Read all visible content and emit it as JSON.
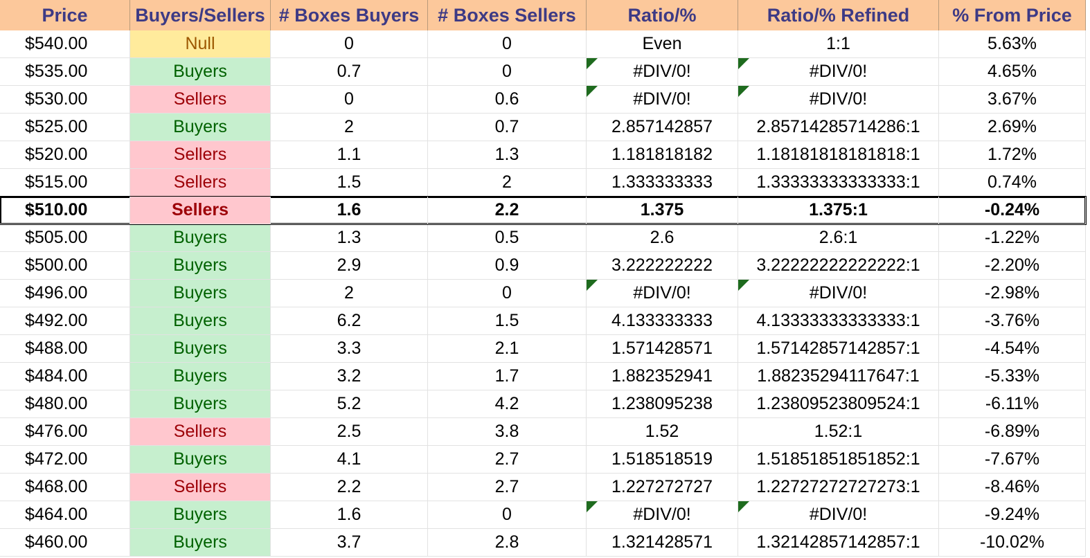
{
  "headers": [
    "Price",
    "Buyers/Sellers",
    "# Boxes Buyers",
    "# Boxes Sellers",
    "Ratio/%",
    "Ratio/% Refined",
    "% From Price"
  ],
  "current_price_row_index": 6,
  "colors": {
    "header_bg": "#fcc89b",
    "header_text": "#3d3a85",
    "buyers_bg": "#c6efce",
    "buyers_text": "#006100",
    "sellers_bg": "#ffc7ce",
    "sellers_text": "#9c0006",
    "null_bg": "#ffeb9c",
    "null_text": "#9c5700",
    "error_indicator": "#1e6b1e"
  },
  "rows": [
    {
      "price": "$540.00",
      "side": "Null",
      "buyers": "0",
      "sellers": "0",
      "ratio": "Even",
      "refined": "1:1",
      "pct": "5.63%",
      "error": false
    },
    {
      "price": "$535.00",
      "side": "Buyers",
      "buyers": "0.7",
      "sellers": "0",
      "ratio": "#DIV/0!",
      "refined": "#DIV/0!",
      "pct": "4.65%",
      "error": true
    },
    {
      "price": "$530.00",
      "side": "Sellers",
      "buyers": "0",
      "sellers": "0.6",
      "ratio": "#DIV/0!",
      "refined": "#DIV/0!",
      "pct": "3.67%",
      "error": true
    },
    {
      "price": "$525.00",
      "side": "Buyers",
      "buyers": "2",
      "sellers": "0.7",
      "ratio": "2.857142857",
      "refined": "2.85714285714286:1",
      "pct": "2.69%",
      "error": false
    },
    {
      "price": "$520.00",
      "side": "Sellers",
      "buyers": "1.1",
      "sellers": "1.3",
      "ratio": "1.181818182",
      "refined": "1.18181818181818:1",
      "pct": "1.72%",
      "error": false
    },
    {
      "price": "$515.00",
      "side": "Sellers",
      "buyers": "1.5",
      "sellers": "2",
      "ratio": "1.333333333",
      "refined": "1.33333333333333:1",
      "pct": "0.74%",
      "error": false
    },
    {
      "price": "$510.00",
      "side": "Sellers",
      "buyers": "1.6",
      "sellers": "2.2",
      "ratio": "1.375",
      "refined": "1.375:1",
      "pct": "-0.24%",
      "error": false
    },
    {
      "price": "$505.00",
      "side": "Buyers",
      "buyers": "1.3",
      "sellers": "0.5",
      "ratio": "2.6",
      "refined": "2.6:1",
      "pct": "-1.22%",
      "error": false
    },
    {
      "price": "$500.00",
      "side": "Buyers",
      "buyers": "2.9",
      "sellers": "0.9",
      "ratio": "3.222222222",
      "refined": "3.22222222222222:1",
      "pct": "-2.20%",
      "error": false
    },
    {
      "price": "$496.00",
      "side": "Buyers",
      "buyers": "2",
      "sellers": "0",
      "ratio": "#DIV/0!",
      "refined": "#DIV/0!",
      "pct": "-2.98%",
      "error": true
    },
    {
      "price": "$492.00",
      "side": "Buyers",
      "buyers": "6.2",
      "sellers": "1.5",
      "ratio": "4.133333333",
      "refined": "4.13333333333333:1",
      "pct": "-3.76%",
      "error": false
    },
    {
      "price": "$488.00",
      "side": "Buyers",
      "buyers": "3.3",
      "sellers": "2.1",
      "ratio": "1.571428571",
      "refined": "1.57142857142857:1",
      "pct": "-4.54%",
      "error": false
    },
    {
      "price": "$484.00",
      "side": "Buyers",
      "buyers": "3.2",
      "sellers": "1.7",
      "ratio": "1.882352941",
      "refined": "1.88235294117647:1",
      "pct": "-5.33%",
      "error": false
    },
    {
      "price": "$480.00",
      "side": "Buyers",
      "buyers": "5.2",
      "sellers": "4.2",
      "ratio": "1.238095238",
      "refined": "1.23809523809524:1",
      "pct": "-6.11%",
      "error": false
    },
    {
      "price": "$476.00",
      "side": "Sellers",
      "buyers": "2.5",
      "sellers": "3.8",
      "ratio": "1.52",
      "refined": "1.52:1",
      "pct": "-6.89%",
      "error": false
    },
    {
      "price": "$472.00",
      "side": "Buyers",
      "buyers": "4.1",
      "sellers": "2.7",
      "ratio": "1.518518519",
      "refined": "1.51851851851852:1",
      "pct": "-7.67%",
      "error": false
    },
    {
      "price": "$468.00",
      "side": "Sellers",
      "buyers": "2.2",
      "sellers": "2.7",
      "ratio": "1.227272727",
      "refined": "1.22727272727273:1",
      "pct": "-8.46%",
      "error": false
    },
    {
      "price": "$464.00",
      "side": "Buyers",
      "buyers": "1.6",
      "sellers": "0",
      "ratio": "#DIV/0!",
      "refined": "#DIV/0!",
      "pct": "-9.24%",
      "error": true
    },
    {
      "price": "$460.00",
      "side": "Buyers",
      "buyers": "3.7",
      "sellers": "2.8",
      "ratio": "1.321428571",
      "refined": "1.32142857142857:1",
      "pct": "-10.02%",
      "error": false
    }
  ]
}
